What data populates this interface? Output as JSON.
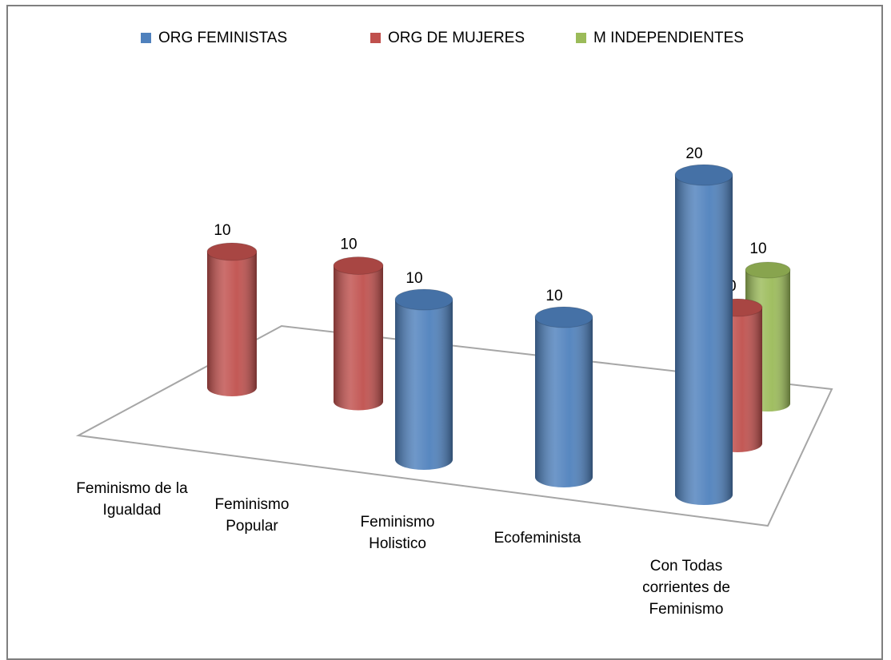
{
  "chart_data": {
    "type": "cylinder3d",
    "categories": [
      "Feminismo de la Igualdad",
      "Feminismo Popular",
      "Feminismo Holistico",
      "Ecofeminista",
      "Con Todas corrientes de Feminismo"
    ],
    "series": [
      {
        "name": "ORG FEMINISTAS",
        "color": "#4f81bd",
        "values": [
          null,
          null,
          10,
          10,
          20
        ]
      },
      {
        "name": "ORG DE MUJERES",
        "color": "#c0504d",
        "values": [
          10,
          10,
          null,
          null,
          10
        ]
      },
      {
        "name": "M INDEPENDIENTES",
        "color": "#9bbb59",
        "values": [
          null,
          null,
          null,
          null,
          10
        ]
      }
    ],
    "legend": "top"
  }
}
